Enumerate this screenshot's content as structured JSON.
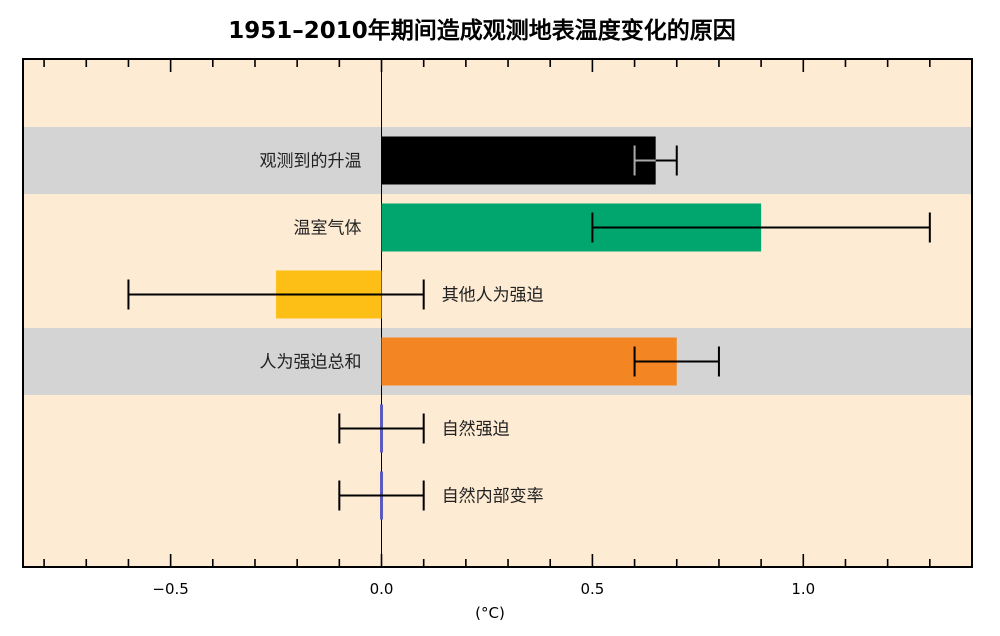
{
  "chart_data": {
    "type": "bar",
    "orientation": "horizontal",
    "title": "1951–2010年期间造成观测地表温度变化的原因",
    "xlabel": "(°C)",
    "xlim": [
      -0.85,
      1.4
    ],
    "xticks": [
      -0.5,
      0.0,
      0.5,
      1.0
    ],
    "xtick_labels": [
      "−0.5",
      "0.0",
      "0.5",
      "1.0"
    ],
    "minor_tick_step": 0.1,
    "grid": false,
    "colors": {
      "background": "#fdebd3",
      "band": "#d4d4d4",
      "observed": "#000000",
      "ghg": "#00a66e",
      "other_anthro": "#fdbf16",
      "anthro_total": "#f38622",
      "natural": "#5b5bbf"
    },
    "categories": [
      "观测到的升温",
      "温室气体",
      "其他人为强迫",
      "人为强迫总和",
      "自然强迫",
      "自然内部变率"
    ],
    "series": [
      {
        "values": [
          0.65,
          0.9,
          -0.25,
          0.7,
          0.0,
          0.0
        ],
        "error_low": [
          0.6,
          0.5,
          -0.6,
          0.6,
          -0.1,
          -0.1
        ],
        "error_high": [
          0.7,
          1.3,
          0.1,
          0.8,
          0.1,
          0.1
        ]
      }
    ],
    "shaded_rows": [
      0,
      3
    ]
  }
}
